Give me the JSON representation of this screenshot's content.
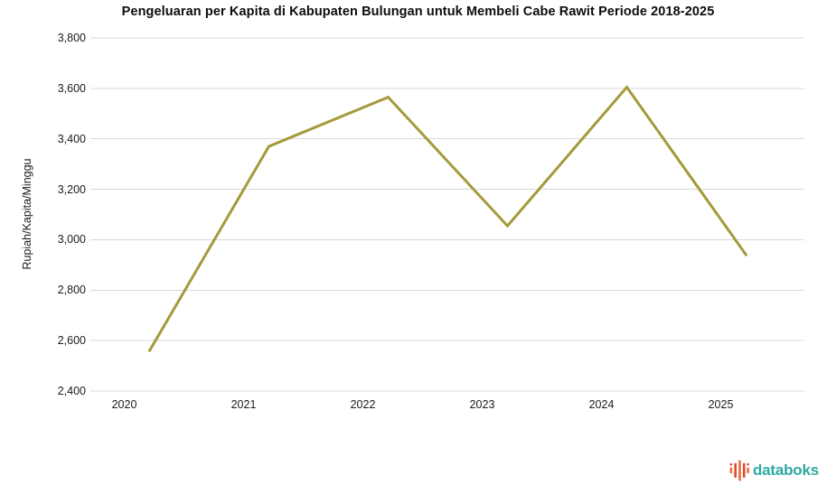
{
  "title": "Pengeluaran per Kapita di Kabupaten Bulungan untuk Membeli Cabe Rawit Periode 2018-2025",
  "y_axis": {
    "label": "Rupiah/Kapita/Minggu",
    "tick_labels": [
      "3,800",
      "3,600",
      "3,400",
      "3,200",
      "3,000",
      "2,800",
      "2,600",
      "2,400"
    ],
    "tick_values": [
      3800,
      3600,
      3400,
      3200,
      3000,
      2800,
      2600,
      2400
    ]
  },
  "x_axis": {
    "tick_labels": [
      "2020",
      "2021",
      "2022",
      "2023",
      "2024",
      "2025"
    ]
  },
  "chart_data": {
    "type": "line",
    "title": "Pengeluaran per Kapita di Kabupaten Bulungan untuk Membeli Cabe Rawit Periode 2018-2025",
    "xlabel": "",
    "ylabel": "Rupiah/Kapita/Minggu",
    "categories": [
      "2020",
      "2021",
      "2022",
      "2023",
      "2024",
      "2025"
    ],
    "values": [
      2560,
      3370,
      3565,
      3055,
      3605,
      2940
    ],
    "ylim": [
      2400,
      3800
    ],
    "y_tick_step": 200,
    "grid": true,
    "legend": false,
    "line_color": "#a59a3b",
    "grid_color": "#d9d9d9"
  },
  "branding": {
    "logo_text": "databoks",
    "logo_text_color": "#2ea9a4",
    "logo_icon_colors": {
      "orange": "#f26a36",
      "red": "#dd4b39"
    }
  }
}
